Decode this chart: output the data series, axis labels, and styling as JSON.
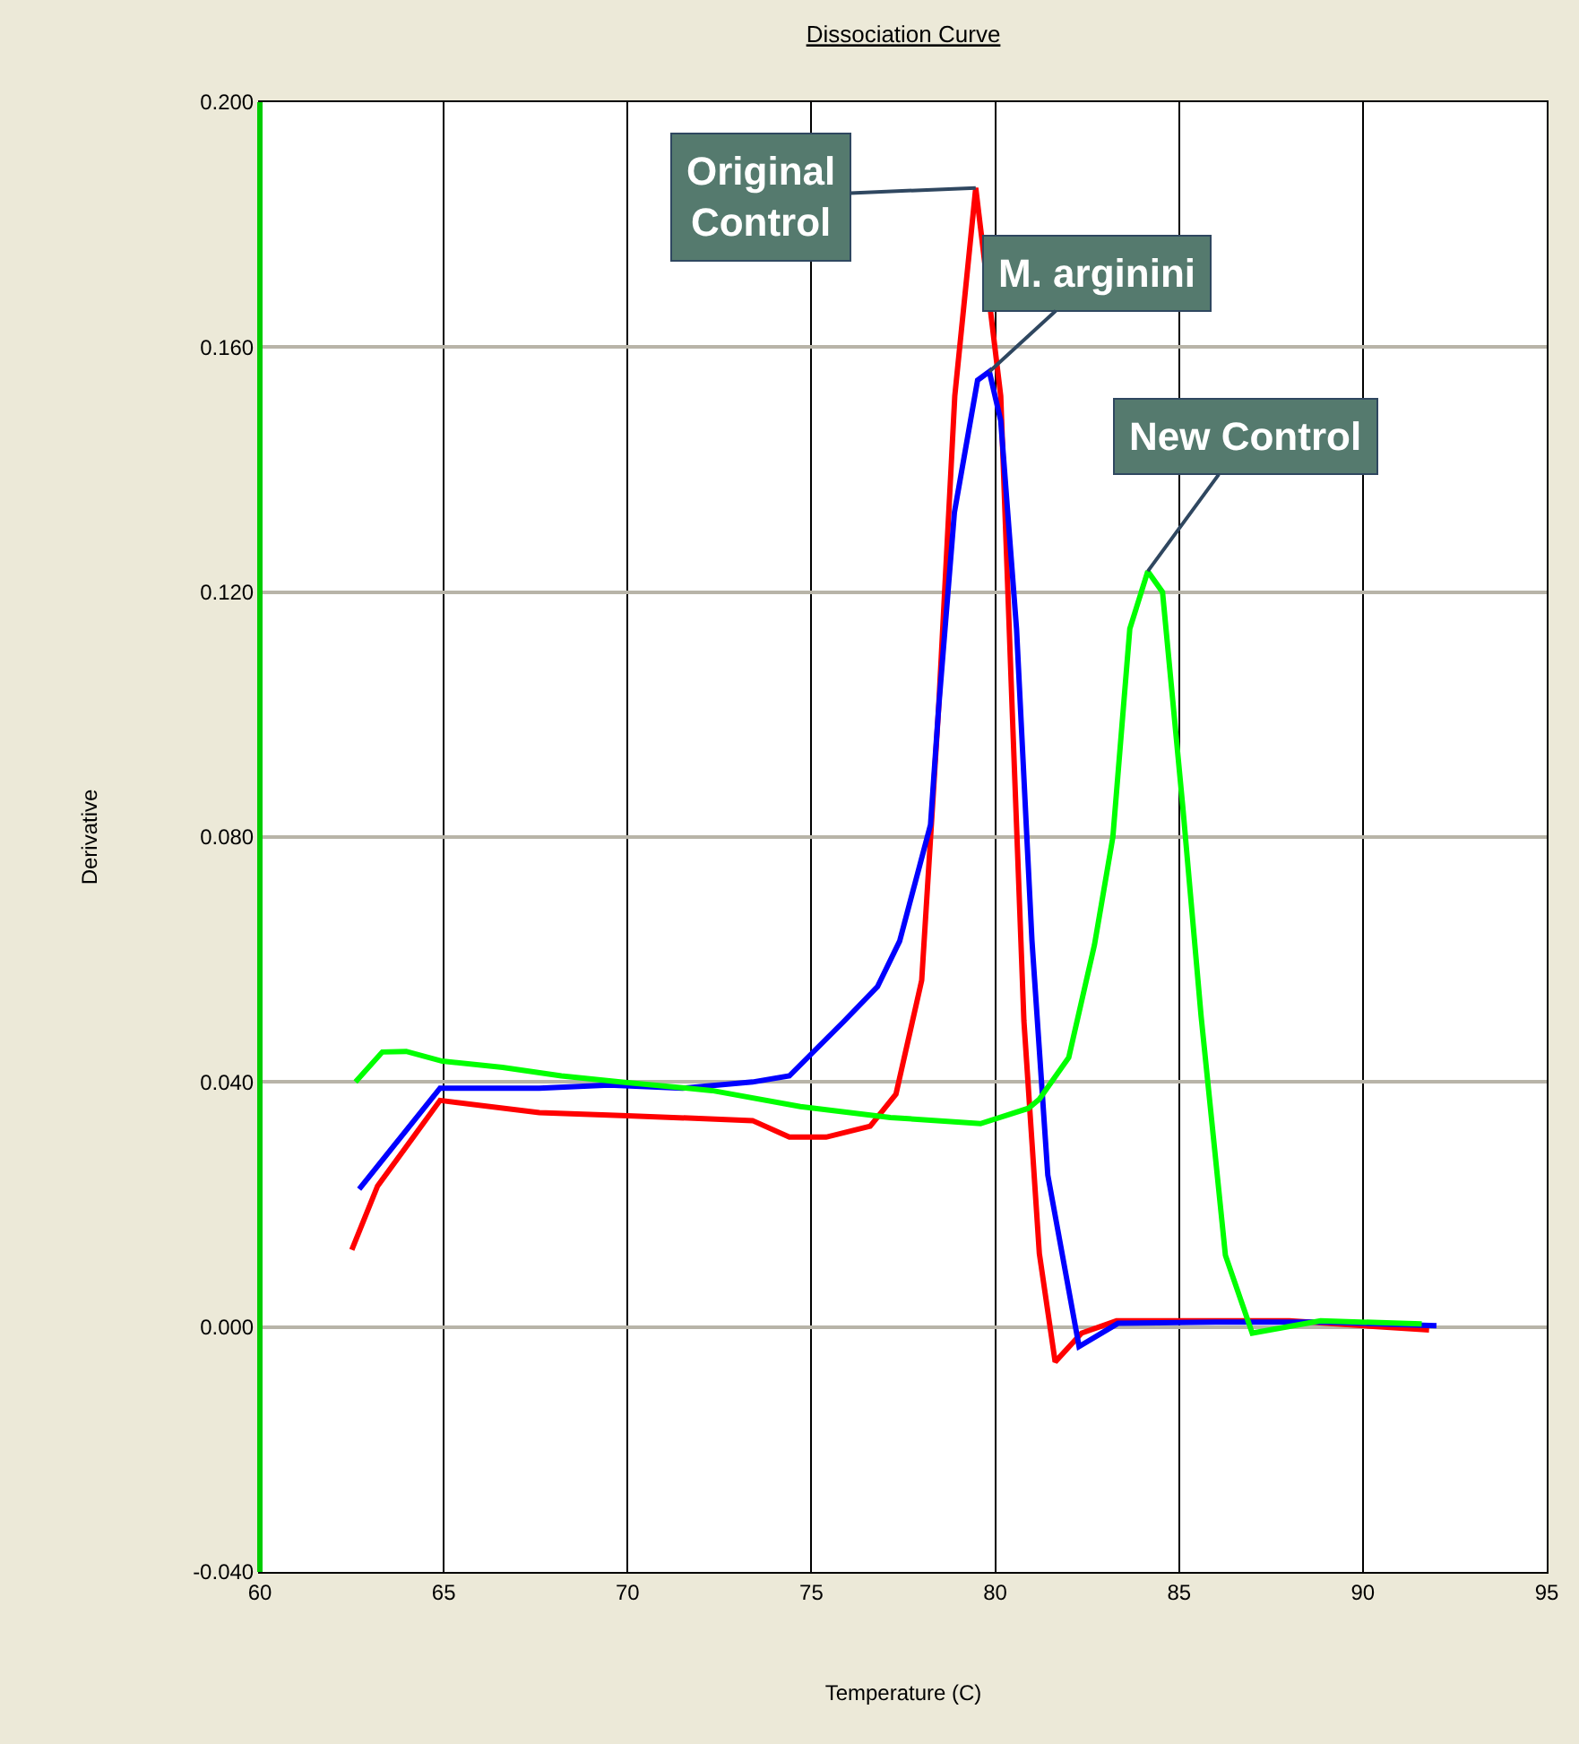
{
  "chart_data": {
    "type": "line",
    "title": "Dissociation Curve",
    "xlabel": "Temperature (C)",
    "ylabel": "Derivative",
    "xlim": [
      60,
      95
    ],
    "xticks": [
      60,
      65,
      70,
      75,
      80,
      85,
      90,
      95
    ],
    "ylim": [
      -0.04,
      0.2
    ],
    "yticks": [
      {
        "value": -0.04,
        "label": "-0.040"
      },
      {
        "value": 0,
        "label": "0.000"
      },
      {
        "value": 0.04,
        "label": "0.040"
      },
      {
        "value": 0.08,
        "label": "0.080"
      },
      {
        "value": 0.12,
        "label": "0.120"
      },
      {
        "value": 0.16,
        "label": "0.160"
      },
      {
        "value": 0.2,
        "label": "0.200"
      }
    ],
    "grid": true,
    "marker": "none",
    "line_style": "solid",
    "series": [
      {
        "color": "#ff0000",
        "x": [
          62.5,
          63.2,
          64.9,
          67.6,
          70.0,
          73.4,
          74.4,
          75.4,
          76.6,
          77.3,
          78.0,
          78.46,
          78.9,
          79.47,
          80.15,
          80.46,
          80.78,
          81.2,
          81.63,
          82.35,
          83.3,
          85.0,
          88.0,
          91.8
        ],
        "values": [
          0.0126,
          0.023,
          0.037,
          0.035,
          0.0345,
          0.0337,
          0.031,
          0.031,
          0.0328,
          0.038,
          0.0566,
          0.101,
          0.152,
          0.186,
          0.152,
          0.101,
          0.05,
          0.012,
          -0.0057,
          -0.001,
          0.001,
          0.001,
          0.001,
          -0.0005
        ]
      },
      {
        "color": "#0000ff",
        "x": [
          62.7,
          63.7,
          64.9,
          67.6,
          69.5,
          71.5,
          73.4,
          74.4,
          74.9,
          75.9,
          76.8,
          77.4,
          78.24,
          78.46,
          78.89,
          79.52,
          79.84,
          80.15,
          80.58,
          81.0,
          81.43,
          82.28,
          83.34,
          86.0,
          89.0,
          92.0
        ],
        "values": [
          0.0225,
          0.03,
          0.039,
          0.039,
          0.0395,
          0.039,
          0.04,
          0.041,
          0.044,
          0.05,
          0.0556,
          0.063,
          0.082,
          0.101,
          0.133,
          0.1546,
          0.156,
          0.148,
          0.114,
          0.063,
          0.0248,
          -0.0032,
          0.0006,
          0.0008,
          0.0008,
          0.0002
        ]
      },
      {
        "color": "#00ff00",
        "x": [
          62.6,
          63.33,
          63.98,
          64.96,
          66.6,
          68.2,
          69.8,
          72.3,
          74.7,
          77.15,
          79.6,
          80.9,
          81.2,
          82.0,
          82.7,
          83.2,
          83.66,
          84.15,
          84.55,
          85.1,
          85.6,
          86.26,
          86.99,
          88.85,
          91.6
        ],
        "values": [
          0.04,
          0.0449,
          0.045,
          0.0434,
          0.0424,
          0.041,
          0.04,
          0.0386,
          0.036,
          0.0342,
          0.0332,
          0.0357,
          0.0372,
          0.044,
          0.0624,
          0.08,
          0.114,
          0.1234,
          0.12,
          0.085,
          0.0507,
          0.0117,
          -0.001,
          0.001,
          0.0005
        ]
      }
    ],
    "annotations": [
      {
        "text": "Original\nControl",
        "x": 79.47,
        "y": 0.186
      },
      {
        "text": "M. arginini",
        "x": 79.84,
        "y": 0.156
      },
      {
        "text": "New Control",
        "x": 84.15,
        "y": 0.1234
      }
    ]
  }
}
